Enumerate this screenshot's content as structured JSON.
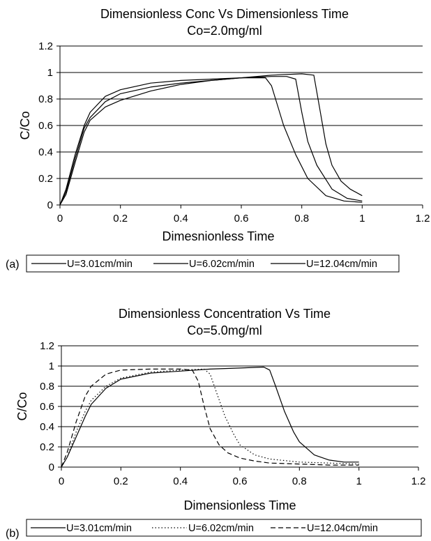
{
  "panels": [
    {
      "label": "(a)",
      "legend": [
        "U=3.01cm/min",
        "U=6.02cm/min",
        "U=12.04cm/min"
      ]
    },
    {
      "label": "(b)",
      "legend": [
        "U=3.01cm/min",
        "U=6.02cm/min",
        "U=12.04cm/min"
      ]
    }
  ],
  "chart_data": [
    {
      "type": "line",
      "title": "Dimensionless Conc Vs Dimensionless Time",
      "subtitle": "Co=2.0mg/ml",
      "xlabel": "Dimesnionless Time",
      "ylabel": "C/Co",
      "xlim": [
        0,
        1.2
      ],
      "ylim": [
        0,
        1.2
      ],
      "xticks": [
        "0",
        "0.2",
        "0.4",
        "0.6",
        "0.8",
        "1",
        "1.2"
      ],
      "yticks": [
        "0",
        "0.2",
        "0.4",
        "0.6",
        "0.8",
        "1",
        "1.2"
      ],
      "grid": "horizontal",
      "legend_position": "bottom",
      "series": [
        {
          "name": "U=3.01cm/min",
          "style": "solid",
          "x": [
            0,
            0.02,
            0.05,
            0.08,
            0.1,
            0.15,
            0.2,
            0.3,
            0.4,
            0.5,
            0.6,
            0.7,
            0.8,
            0.84,
            0.86,
            0.88,
            0.9,
            0.93,
            0.96,
            1.0
          ],
          "y": [
            0,
            0.08,
            0.32,
            0.55,
            0.64,
            0.74,
            0.79,
            0.86,
            0.91,
            0.94,
            0.96,
            0.98,
            0.99,
            0.98,
            0.72,
            0.46,
            0.3,
            0.18,
            0.12,
            0.07
          ]
        },
        {
          "name": "U=6.02cm/min",
          "style": "solid",
          "x": [
            0,
            0.02,
            0.05,
            0.08,
            0.1,
            0.15,
            0.2,
            0.3,
            0.4,
            0.5,
            0.6,
            0.7,
            0.75,
            0.78,
            0.8,
            0.82,
            0.85,
            0.9,
            0.95,
            1.0
          ],
          "y": [
            0,
            0.1,
            0.35,
            0.58,
            0.66,
            0.78,
            0.84,
            0.89,
            0.92,
            0.94,
            0.96,
            0.97,
            0.97,
            0.95,
            0.7,
            0.48,
            0.3,
            0.12,
            0.05,
            0.03
          ]
        },
        {
          "name": "U=12.04cm/min",
          "style": "solid",
          "x": [
            0,
            0.02,
            0.05,
            0.08,
            0.1,
            0.15,
            0.2,
            0.3,
            0.4,
            0.5,
            0.6,
            0.68,
            0.7,
            0.72,
            0.74,
            0.78,
            0.82,
            0.88,
            0.94,
            1.0
          ],
          "y": [
            0,
            0.12,
            0.38,
            0.6,
            0.7,
            0.82,
            0.87,
            0.92,
            0.94,
            0.95,
            0.96,
            0.96,
            0.9,
            0.75,
            0.6,
            0.38,
            0.2,
            0.07,
            0.03,
            0.02
          ]
        }
      ]
    },
    {
      "type": "line",
      "title": "Dimensionless Concentration Vs Time",
      "subtitle": "Co=5.0mg/ml",
      "xlabel": "Dimensionless Time",
      "ylabel": "C/Co",
      "xlim": [
        0,
        1.2
      ],
      "ylim": [
        0,
        1.2
      ],
      "xticks": [
        "0",
        "0.2",
        "0.4",
        "0.6",
        "0.8",
        "1",
        "1.2"
      ],
      "yticks": [
        "0",
        "0.2",
        "0.4",
        "0.6",
        "0.8",
        "1",
        "1.2"
      ],
      "grid": "horizontal",
      "legend_position": "bottom",
      "series": [
        {
          "name": "U=3.01cm/min",
          "style": "solid",
          "x": [
            0,
            0.02,
            0.05,
            0.08,
            0.1,
            0.15,
            0.2,
            0.3,
            0.4,
            0.5,
            0.6,
            0.68,
            0.7,
            0.72,
            0.75,
            0.78,
            0.8,
            0.85,
            0.9,
            0.95,
            1.0
          ],
          "y": [
            0,
            0.1,
            0.3,
            0.5,
            0.62,
            0.78,
            0.87,
            0.93,
            0.95,
            0.97,
            0.98,
            0.99,
            0.96,
            0.8,
            0.55,
            0.35,
            0.25,
            0.12,
            0.07,
            0.05,
            0.05
          ]
        },
        {
          "name": "U=6.02cm/min",
          "style": "dotted",
          "x": [
            0,
            0.02,
            0.05,
            0.08,
            0.1,
            0.15,
            0.2,
            0.3,
            0.4,
            0.48,
            0.5,
            0.52,
            0.55,
            0.58,
            0.6,
            0.65,
            0.7,
            0.8,
            0.9,
            1.0
          ],
          "y": [
            0,
            0.1,
            0.35,
            0.55,
            0.66,
            0.8,
            0.88,
            0.94,
            0.96,
            0.97,
            0.92,
            0.75,
            0.5,
            0.32,
            0.22,
            0.12,
            0.08,
            0.05,
            0.04,
            0.03
          ]
        },
        {
          "name": "U=12.04cm/min",
          "style": "dashed",
          "x": [
            0,
            0.02,
            0.05,
            0.08,
            0.1,
            0.15,
            0.2,
            0.3,
            0.4,
            0.44,
            0.46,
            0.48,
            0.5,
            0.53,
            0.56,
            0.6,
            0.65,
            0.7,
            0.8,
            0.9,
            1.0
          ],
          "y": [
            0,
            0.15,
            0.45,
            0.7,
            0.8,
            0.92,
            0.96,
            0.97,
            0.97,
            0.96,
            0.85,
            0.6,
            0.38,
            0.22,
            0.14,
            0.09,
            0.06,
            0.04,
            0.03,
            0.02,
            0.02
          ]
        }
      ]
    }
  ]
}
